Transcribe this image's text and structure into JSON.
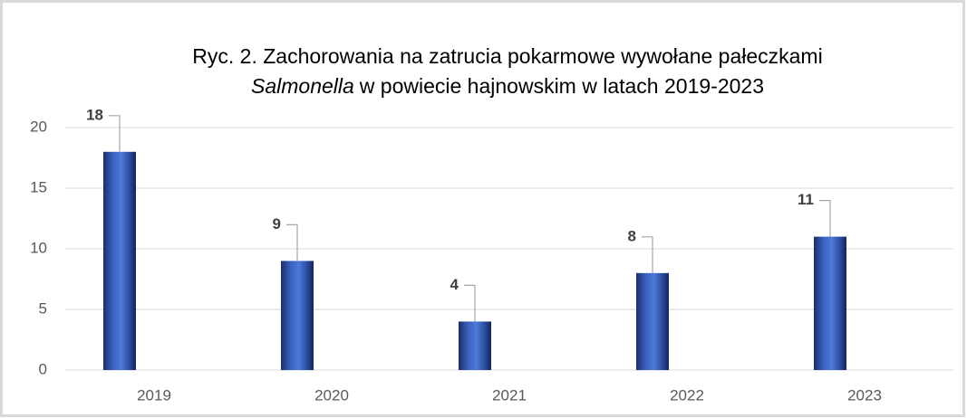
{
  "chart_data": {
    "type": "bar",
    "title": [
      "Ryc. 2. Zachorowania na zatrucia pokarmowe wywołane pałeczkami",
      "Salmonella",
      "w powiecie hajnowskim w latach 2019-2023"
    ],
    "categories": [
      "2019",
      "2020",
      "2021",
      "2022",
      "2023"
    ],
    "values": [
      18,
      9,
      4,
      8,
      11
    ],
    "color": "#4472c4",
    "ylim": [
      0,
      20
    ],
    "yticks": [
      0,
      5,
      10,
      15,
      20
    ],
    "grid": true
  }
}
